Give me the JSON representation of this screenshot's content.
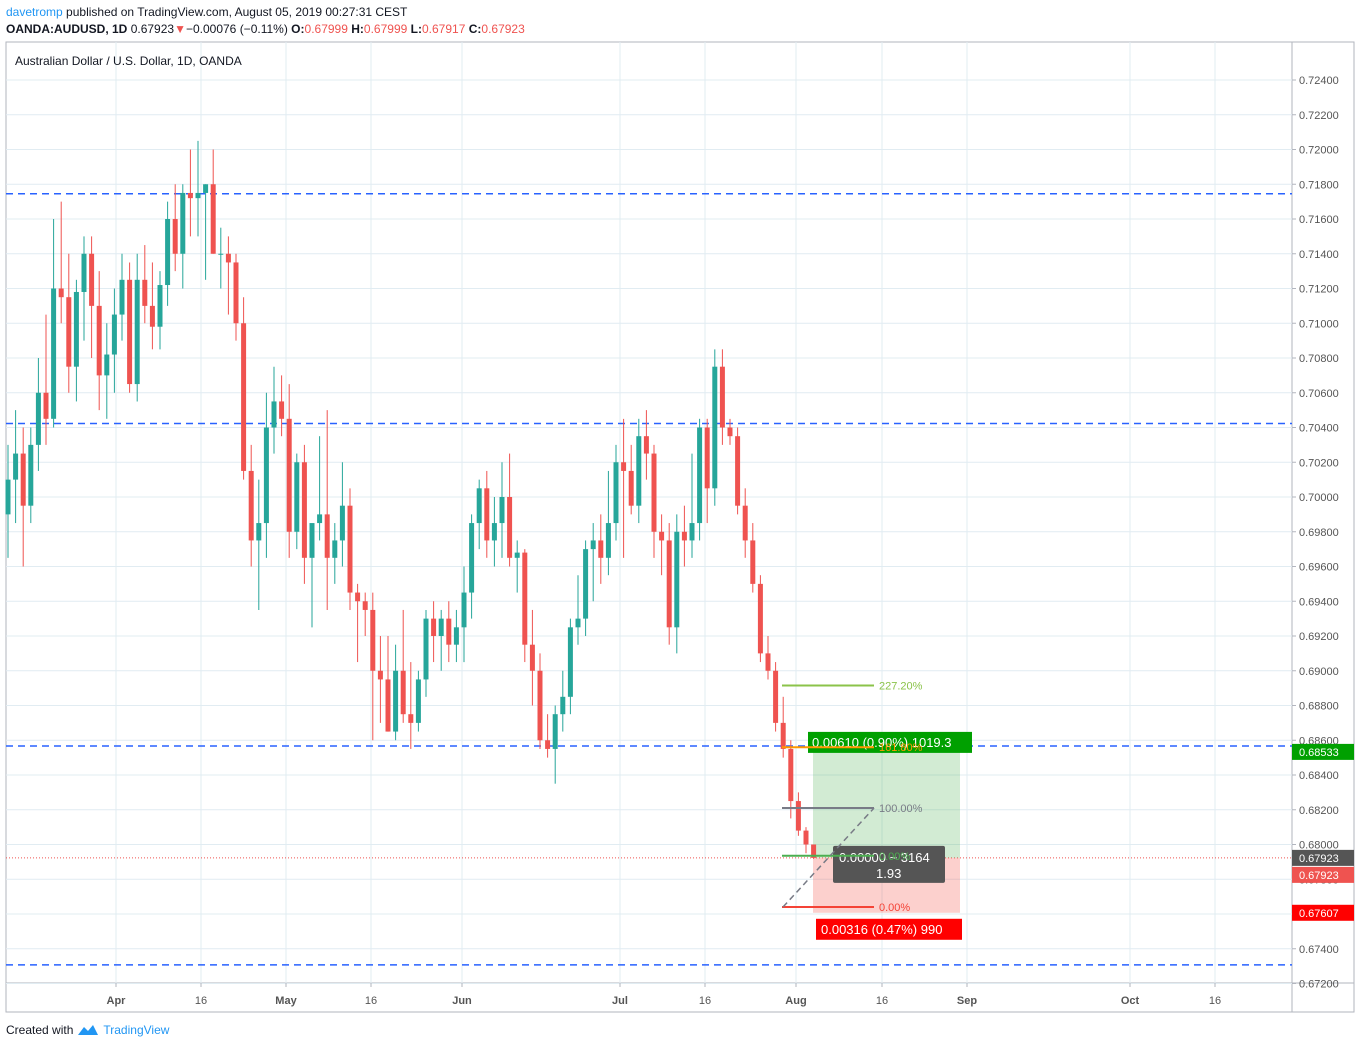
{
  "header": {
    "author": "davetromp",
    "published_text": "published on TradingView.com, August 05, 2019 00:27:31 CEST",
    "symbol": "OANDA:AUDUSD, 1D",
    "last": "0.67923",
    "change_arrow": "▼",
    "change": "−0.00076 (−0.11%)",
    "o_label": "O:",
    "o_value": "0.67999",
    "h_label": "H:",
    "h_value": "0.67999",
    "l_label": "L:",
    "l_value": "0.67917",
    "c_label": "C:",
    "c_value": "0.67923"
  },
  "footer": {
    "created_with": "Created with",
    "brand": "TradingView"
  },
  "colors": {
    "up": "#26a69a",
    "down": "#ef5350",
    "hline": "#2962ff",
    "grid": "#e1ecf2",
    "target": "#00a000",
    "stop": "#ff0000"
  },
  "chart_data": {
    "type": "candlestick",
    "title": "Australian Dollar / U.S. Dollar, 1D, OANDA",
    "ylim": [
      0.6725,
      0.7255
    ],
    "y_ticks": [
      "0.72400",
      "0.72200",
      "0.72000",
      "0.71800",
      "0.71600",
      "0.71400",
      "0.71200",
      "0.71000",
      "0.70800",
      "0.70600",
      "0.70400",
      "0.70200",
      "0.70000",
      "0.69800",
      "0.69600",
      "0.69400",
      "0.69200",
      "0.69000",
      "0.68800",
      "0.68600",
      "0.68400",
      "0.68200",
      "0.68000",
      "0.67800",
      "0.67600",
      "0.67400",
      "0.67200"
    ],
    "x_ticks": [
      "Apr",
      "16",
      "May",
      "16",
      "Jun",
      "Jul",
      "16",
      "Aug",
      "16",
      "Sep",
      "Oct",
      "16"
    ],
    "last_price_label": "0.67923",
    "last_close_label": "0.67923",
    "target_price_label": "0.68533",
    "stop_price_label": "0.67607",
    "horizontal_levels": [
      0.71745,
      0.70423,
      0.68567,
      0.67307
    ],
    "candles": [
      [
        0.699,
        0.703,
        0.6965,
        0.701
      ],
      [
        0.701,
        0.705,
        0.6985,
        0.7025
      ],
      [
        0.7025,
        0.704,
        0.696,
        0.6995
      ],
      [
        0.6995,
        0.704,
        0.6985,
        0.703
      ],
      [
        0.703,
        0.708,
        0.7015,
        0.706
      ],
      [
        0.706,
        0.7105,
        0.703,
        0.7045
      ],
      [
        0.7045,
        0.716,
        0.704,
        0.712
      ],
      [
        0.712,
        0.717,
        0.71,
        0.7115
      ],
      [
        0.7115,
        0.714,
        0.706,
        0.7075
      ],
      [
        0.7075,
        0.7125,
        0.7055,
        0.7118
      ],
      [
        0.7118,
        0.715,
        0.709,
        0.714
      ],
      [
        0.714,
        0.715,
        0.708,
        0.711
      ],
      [
        0.711,
        0.713,
        0.705,
        0.707
      ],
      [
        0.707,
        0.71,
        0.7045,
        0.7082
      ],
      [
        0.7082,
        0.712,
        0.706,
        0.7105
      ],
      [
        0.7105,
        0.714,
        0.709,
        0.7125
      ],
      [
        0.7125,
        0.7135,
        0.706,
        0.7065
      ],
      [
        0.7065,
        0.714,
        0.7055,
        0.7125
      ],
      [
        0.7125,
        0.7145,
        0.71,
        0.711
      ],
      [
        0.711,
        0.7135,
        0.7085,
        0.7098
      ],
      [
        0.7098,
        0.713,
        0.7085,
        0.7122
      ],
      [
        0.7122,
        0.717,
        0.711,
        0.716
      ],
      [
        0.716,
        0.718,
        0.713,
        0.714
      ],
      [
        0.714,
        0.718,
        0.712,
        0.7175
      ],
      [
        0.7175,
        0.72,
        0.715,
        0.7172
      ],
      [
        0.7172,
        0.7205,
        0.715,
        0.7175
      ],
      [
        0.7175,
        0.718,
        0.7125,
        0.718
      ],
      [
        0.718,
        0.72,
        0.714,
        0.714
      ],
      [
        0.714,
        0.7155,
        0.712,
        0.714
      ],
      [
        0.714,
        0.715,
        0.7105,
        0.7135
      ],
      [
        0.7135,
        0.714,
        0.709,
        0.71
      ],
      [
        0.71,
        0.7115,
        0.701,
        0.7015
      ],
      [
        0.7015,
        0.703,
        0.696,
        0.6975
      ],
      [
        0.6975,
        0.701,
        0.6935,
        0.6985
      ],
      [
        0.6985,
        0.706,
        0.6965,
        0.704
      ],
      [
        0.704,
        0.7075,
        0.7025,
        0.7055
      ],
      [
        0.7055,
        0.707,
        0.7035,
        0.7045
      ],
      [
        0.7045,
        0.7065,
        0.6965,
        0.698
      ],
      [
        0.698,
        0.7025,
        0.697,
        0.702
      ],
      [
        0.702,
        0.703,
        0.695,
        0.6965
      ],
      [
        0.6965,
        0.698,
        0.6925,
        0.6985
      ],
      [
        0.6985,
        0.7035,
        0.6975,
        0.699
      ],
      [
        0.699,
        0.705,
        0.6935,
        0.6965
      ],
      [
        0.6965,
        0.6985,
        0.695,
        0.6975
      ],
      [
        0.6975,
        0.702,
        0.696,
        0.6995
      ],
      [
        0.6995,
        0.7005,
        0.6935,
        0.6945
      ],
      [
        0.6945,
        0.695,
        0.6905,
        0.694
      ],
      [
        0.694,
        0.6945,
        0.692,
        0.6935
      ],
      [
        0.6935,
        0.6945,
        0.686,
        0.69
      ],
      [
        0.69,
        0.692,
        0.687,
        0.6895
      ],
      [
        0.6895,
        0.692,
        0.6865,
        0.6865
      ],
      [
        0.6865,
        0.6915,
        0.686,
        0.69
      ],
      [
        0.69,
        0.6935,
        0.687,
        0.6875
      ],
      [
        0.6875,
        0.6905,
        0.6855,
        0.687
      ],
      [
        0.687,
        0.69,
        0.6865,
        0.6895
      ],
      [
        0.6895,
        0.6935,
        0.6885,
        0.693
      ],
      [
        0.693,
        0.694,
        0.6905,
        0.692
      ],
      [
        0.692,
        0.6935,
        0.69,
        0.693
      ],
      [
        0.693,
        0.694,
        0.6905,
        0.6915
      ],
      [
        0.6915,
        0.6935,
        0.6905,
        0.6925
      ],
      [
        0.6925,
        0.696,
        0.6905,
        0.6945
      ],
      [
        0.6945,
        0.699,
        0.693,
        0.6985
      ],
      [
        0.6985,
        0.701,
        0.697,
        0.7005
      ],
      [
        0.7005,
        0.7015,
        0.6965,
        0.6975
      ],
      [
        0.6975,
        0.7,
        0.696,
        0.6985
      ],
      [
        0.6985,
        0.702,
        0.6965,
        0.7
      ],
      [
        0.7,
        0.7025,
        0.696,
        0.6965
      ],
      [
        0.6965,
        0.6975,
        0.6945,
        0.6968
      ],
      [
        0.6968,
        0.697,
        0.6905,
        0.6915
      ],
      [
        0.6915,
        0.6935,
        0.688,
        0.69
      ],
      [
        0.69,
        0.691,
        0.6855,
        0.686
      ],
      [
        0.686,
        0.6875,
        0.685,
        0.6855
      ],
      [
        0.6855,
        0.688,
        0.6835,
        0.6875
      ],
      [
        0.6875,
        0.69,
        0.6865,
        0.6885
      ],
      [
        0.6885,
        0.693,
        0.6875,
        0.6925
      ],
      [
        0.6925,
        0.6955,
        0.6915,
        0.693
      ],
      [
        0.693,
        0.6975,
        0.692,
        0.697
      ],
      [
        0.697,
        0.6985,
        0.694,
        0.6975
      ],
      [
        0.6975,
        0.699,
        0.695,
        0.6965
      ],
      [
        0.6965,
        0.7015,
        0.6955,
        0.6985
      ],
      [
        0.6985,
        0.703,
        0.6975,
        0.702
      ],
      [
        0.702,
        0.7045,
        0.6965,
        0.7015
      ],
      [
        0.7015,
        0.703,
        0.699,
        0.6995
      ],
      [
        0.6995,
        0.7045,
        0.6985,
        0.7035
      ],
      [
        0.7035,
        0.705,
        0.701,
        0.7025
      ],
      [
        0.7025,
        0.703,
        0.6965,
        0.698
      ],
      [
        0.698,
        0.699,
        0.6955,
        0.6975
      ],
      [
        0.6975,
        0.6985,
        0.6915,
        0.6925
      ],
      [
        0.6925,
        0.699,
        0.691,
        0.698
      ],
      [
        0.698,
        0.6995,
        0.696,
        0.6975
      ],
      [
        0.6975,
        0.7025,
        0.6965,
        0.6985
      ],
      [
        0.6985,
        0.7045,
        0.6975,
        0.704
      ],
      [
        0.704,
        0.7045,
        0.6985,
        0.7005
      ],
      [
        0.7005,
        0.7085,
        0.6995,
        0.7075
      ],
      [
        0.7075,
        0.7085,
        0.703,
        0.704
      ],
      [
        0.704,
        0.7045,
        0.703,
        0.7035
      ],
      [
        0.7035,
        0.704,
        0.699,
        0.6995
      ],
      [
        0.6995,
        0.7005,
        0.6965,
        0.6975
      ],
      [
        0.6975,
        0.6985,
        0.6945,
        0.695
      ],
      [
        0.695,
        0.6955,
        0.6905,
        0.691
      ],
      [
        0.691,
        0.692,
        0.6895,
        0.69
      ],
      [
        0.69,
        0.6905,
        0.6865,
        0.687
      ],
      [
        0.687,
        0.6885,
        0.685,
        0.6855
      ],
      [
        0.6855,
        0.686,
        0.6815,
        0.6825
      ],
      [
        0.6825,
        0.683,
        0.6805,
        0.6808
      ],
      [
        0.6808,
        0.681,
        0.6795,
        0.68
      ],
      [
        0.68,
        0.68,
        0.67917,
        0.67923
      ]
    ],
    "position": {
      "entry": 0.67923,
      "target": 0.68533,
      "stop": 0.67607,
      "target_label": "0.00610 (0.90%) 1019.3",
      "stop_label": "0.00316 (0.47%) 990",
      "center_label_1": "0.00000 ~ 3164",
      "center_label_2": "1.93"
    },
    "fibonacci": [
      {
        "label": "227.20%",
        "price": 0.68915
      },
      {
        "label": "161.80%",
        "price": 0.6856
      },
      {
        "label": "100.00%",
        "price": 0.6821
      },
      {
        "label": "0.00%",
        "price": 0.67935
      },
      {
        "label": "0.00%",
        "price": 0.6764
      }
    ]
  }
}
